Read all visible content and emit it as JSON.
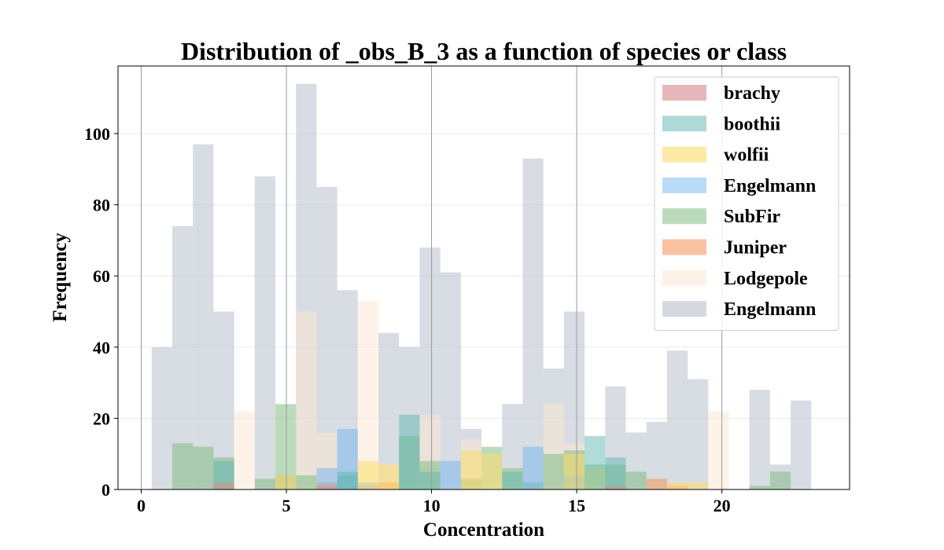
{
  "chart_data": {
    "type": "bar",
    "title": "Distribution of _obs_B_3 as a function of species or class",
    "xlabel": "Concentration",
    "ylabel": "Frequency",
    "xlim": [
      -0.8,
      24.4
    ],
    "ylim": [
      0,
      119
    ],
    "xticks": [
      0,
      5,
      10,
      15,
      20
    ],
    "yticks": [
      0,
      20,
      40,
      60,
      80,
      100
    ],
    "x_gridlines": true,
    "y_gridlines": true,
    "bin_width": 0.71,
    "legend_position": "top-right",
    "series": [
      {
        "name": "Engelmann",
        "color": "#b8bfcc",
        "opacity": 0.55,
        "bins": [
          [
            0.36,
            40
          ],
          [
            1.07,
            74
          ],
          [
            1.78,
            97
          ],
          [
            2.49,
            50
          ],
          [
            3.91,
            88
          ],
          [
            4.62,
            4
          ],
          [
            5.33,
            114
          ],
          [
            6.04,
            85
          ],
          [
            6.75,
            56
          ],
          [
            8.17,
            44
          ],
          [
            8.88,
            40
          ],
          [
            9.59,
            68
          ],
          [
            10.3,
            61
          ],
          [
            11.01,
            17
          ],
          [
            12.43,
            24
          ],
          [
            13.14,
            93
          ],
          [
            13.85,
            34
          ],
          [
            14.56,
            50
          ],
          [
            15.98,
            29
          ],
          [
            16.69,
            16
          ],
          [
            17.4,
            19
          ],
          [
            18.11,
            39
          ],
          [
            18.82,
            31
          ],
          [
            20.95,
            28
          ],
          [
            21.66,
            7
          ],
          [
            22.37,
            25
          ]
        ]
      },
      {
        "name": "Lodgepole",
        "color": "#fde8d2",
        "opacity": 0.5,
        "bins": [
          [
            3.2,
            22
          ],
          [
            5.33,
            50
          ],
          [
            6.04,
            16
          ],
          [
            7.46,
            53
          ],
          [
            8.17,
            7
          ],
          [
            9.59,
            21
          ],
          [
            11.01,
            14
          ],
          [
            12.43,
            6
          ],
          [
            13.85,
            24
          ],
          [
            14.56,
            13
          ],
          [
            19.53,
            22
          ]
        ]
      },
      {
        "name": "Juniper",
        "color": "#f7965a",
        "opacity": 0.55,
        "bins": [
          [
            6.04,
            2
          ],
          [
            7.46,
            1
          ],
          [
            8.17,
            2
          ],
          [
            17.4,
            3
          ],
          [
            18.11,
            1
          ]
        ]
      },
      {
        "name": "SubFir",
        "color": "#7ab87a",
        "opacity": 0.5,
        "bins": [
          [
            1.07,
            13
          ],
          [
            1.78,
            12
          ],
          [
            2.49,
            9
          ],
          [
            3.91,
            3
          ],
          [
            4.62,
            24
          ],
          [
            5.33,
            4
          ],
          [
            6.75,
            4
          ],
          [
            8.88,
            15
          ],
          [
            9.59,
            8
          ],
          [
            11.01,
            3
          ],
          [
            11.72,
            12
          ],
          [
            12.43,
            6
          ],
          [
            13.14,
            2
          ],
          [
            13.85,
            10
          ],
          [
            14.56,
            11
          ],
          [
            15.27,
            7
          ],
          [
            15.98,
            7
          ],
          [
            16.69,
            5
          ],
          [
            20.95,
            1
          ],
          [
            21.66,
            5
          ]
        ]
      },
      {
        "name": "Engelmann",
        "color": "#74b4f0",
        "opacity": 0.5,
        "bins": [
          [
            6.04,
            6
          ],
          [
            6.75,
            17
          ],
          [
            7.46,
            2
          ],
          [
            10.3,
            8
          ],
          [
            13.14,
            12
          ],
          [
            14.56,
            4
          ]
        ]
      },
      {
        "name": "wolfii",
        "color": "#fddc6a",
        "opacity": 0.55,
        "bins": [
          [
            4.62,
            4
          ],
          [
            7.46,
            8
          ],
          [
            8.17,
            7
          ],
          [
            11.01,
            11
          ],
          [
            11.72,
            10
          ],
          [
            14.56,
            10
          ],
          [
            15.27,
            6
          ],
          [
            18.11,
            2
          ],
          [
            18.82,
            2
          ]
        ]
      },
      {
        "name": "boothii",
        "color": "#5fb8b2",
        "opacity": 0.5,
        "bins": [
          [
            2.49,
            8
          ],
          [
            6.75,
            5
          ],
          [
            8.88,
            21
          ],
          [
            9.59,
            5
          ],
          [
            12.43,
            5
          ],
          [
            15.27,
            15
          ],
          [
            15.98,
            9
          ]
        ]
      },
      {
        "name": "brachy",
        "color": "#d98c8c",
        "opacity": 0.55,
        "bins": [
          [
            2.49,
            2
          ],
          [
            6.04,
            1
          ],
          [
            15.98,
            1
          ]
        ]
      }
    ],
    "legend": [
      {
        "label": "brachy",
        "color": "#e6b8b9"
      },
      {
        "label": "boothii",
        "color": "#aed9d6"
      },
      {
        "label": "wolfii",
        "color": "#fdeaa6"
      },
      {
        "label": "Engelmann",
        "color": "#b9daf8"
      },
      {
        "label": "SubFir",
        "color": "#bcdbbc"
      },
      {
        "label": "Juniper",
        "color": "#fac1a3"
      },
      {
        "label": "Lodgepole",
        "color": "#fdf2e8"
      },
      {
        "label": "Engelmann",
        "color": "#d5d9e0"
      }
    ]
  }
}
